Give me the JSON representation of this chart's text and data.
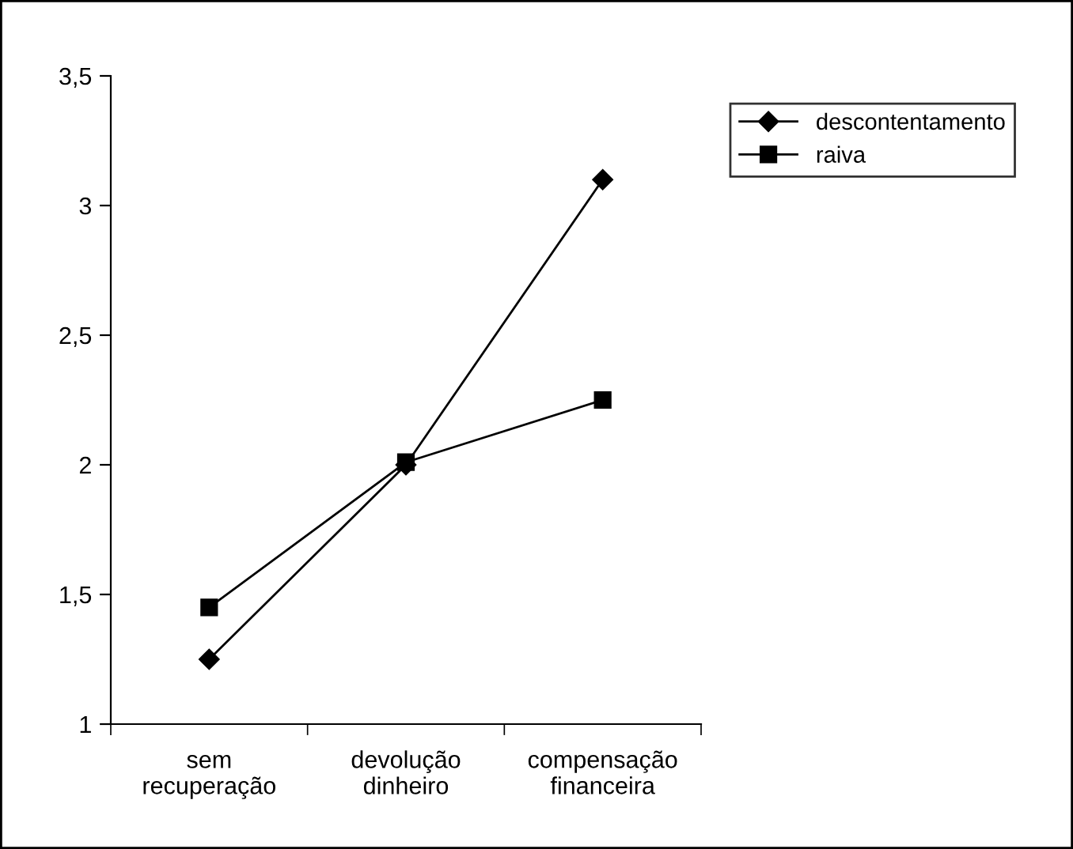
{
  "chart_data": {
    "type": "line",
    "categories": [
      "sem\nrecuperação",
      "devolução\ndinheiro",
      "compensação\nfinanceira"
    ],
    "series": [
      {
        "name": "descontentamento",
        "color": "#000000",
        "values": [
          1.25,
          2.0,
          3.1
        ],
        "marker": "diamond"
      },
      {
        "name": "raiva",
        "color": "#000000",
        "values": [
          1.45,
          2.01,
          2.25
        ],
        "marker": "square"
      }
    ],
    "ylim": [
      1,
      3.5
    ],
    "yticks": [
      1,
      {
        "value": 1.5,
        "label": "1,5"
      },
      2,
      {
        "value": 2.5,
        "label": "2,5"
      },
      3,
      {
        "value": 3.5,
        "label": "3,5"
      }
    ],
    "grid": false,
    "legend": "top right",
    "line_style": "solid"
  }
}
